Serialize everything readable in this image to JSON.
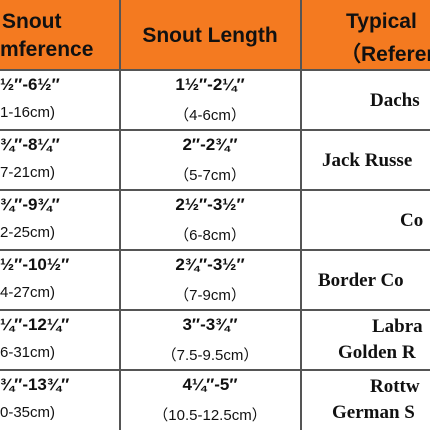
{
  "header": {
    "col1": [
      "Snout",
      "mference"
    ],
    "col2": "Snout Length",
    "col3": [
      "Typical",
      "（Referen"
    ]
  },
  "rows": [
    {
      "circ": "½″-6½″",
      "circ_cm": "1-16cm)",
      "len": "1½″-2¼″",
      "len_cm": "（4-6cm）",
      "breed": [
        "Dachs"
      ]
    },
    {
      "circ": "¾″-8¼″",
      "circ_cm": "7-21cm)",
      "len": "2″-2¾″",
      "len_cm": "（5-7cm）",
      "breed": [
        "Jack Russe"
      ]
    },
    {
      "circ": "¾″-9¾″",
      "circ_cm": "2-25cm)",
      "len": "2½″-3½″",
      "len_cm": "（6-8cm）",
      "breed": [
        "Co"
      ]
    },
    {
      "circ": "½″-10½″",
      "circ_cm": "4-27cm)",
      "len": "2¾″-3½″",
      "len_cm": "（7-9cm）",
      "breed": [
        "Border Co"
      ]
    },
    {
      "circ": "¼″-12¼″",
      "circ_cm": "6-31cm)",
      "len": "3″-3¾″",
      "len_cm": "（7.5-9.5cm）",
      "breed": [
        "Labra",
        "Golden R"
      ]
    },
    {
      "circ": "¾″-13¾″",
      "circ_cm": "0-35cm)",
      "len": "4¼″-5″",
      "len_cm": "（10.5-12.5cm）",
      "breed": [
        "Rottw",
        "German S"
      ]
    }
  ]
}
